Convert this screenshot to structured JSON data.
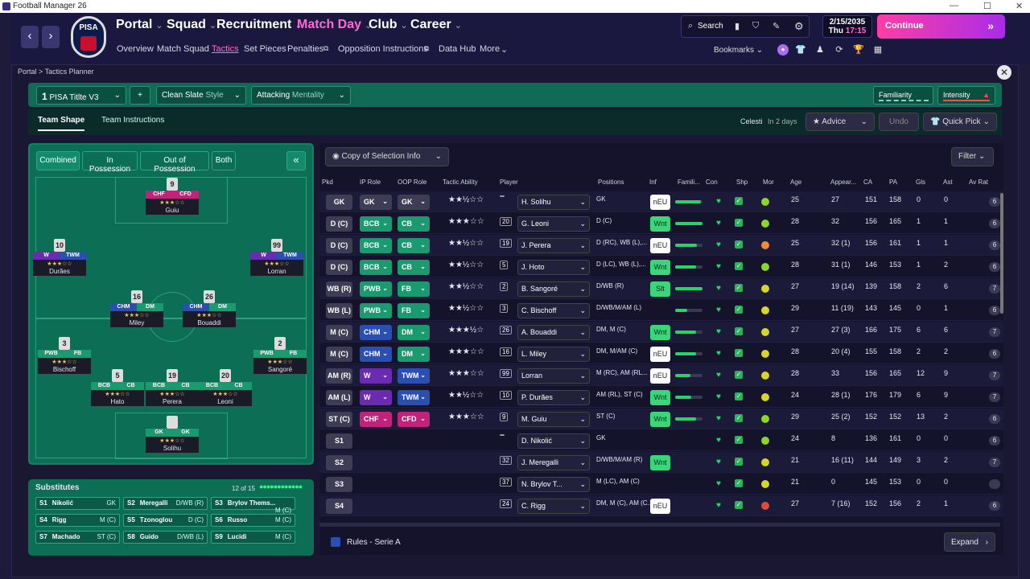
{
  "window": {
    "title": "Football Manager 26",
    "minimize": "—",
    "maximize": "☐",
    "close": "✕"
  },
  "club": {
    "badge_text": "PISA"
  },
  "nav": {
    "main": [
      "Portal",
      "Squad",
      "Recruitment",
      "Match Day",
      "Club",
      "Career"
    ],
    "sub": [
      "Overview",
      "Match Squad",
      "Tactics",
      "Set Pieces",
      "Penalties",
      "Opposition Instructions",
      "Data Hub",
      "More"
    ],
    "active_sub": "Tactics"
  },
  "tools": {
    "search": "Search"
  },
  "date": {
    "line1": "2/15/2035",
    "day": "Thu",
    "time": "17:15"
  },
  "continue_label": "Continue",
  "bookmarks_label": "Bookmarks",
  "breadcrumb": {
    "root": "Portal",
    "current": "Tactics Planner"
  },
  "tactic": {
    "slot": "1",
    "name": "PISA Titlte V3",
    "add": "+",
    "style_value": "Clean Slate",
    "style_label": "Style",
    "mentality_value": "Attacking",
    "mentality_label": "Mentality",
    "familiarity": "Familiarity",
    "intensity": "Intensity"
  },
  "tabs": {
    "shape": "Team Shape",
    "instructions": "Team Instructions"
  },
  "opponent": {
    "name": "Celesti",
    "when": "In 2 days"
  },
  "buttons": {
    "advice": "Advice",
    "undo": "Undo",
    "quick_pick": "Quick Pick",
    "copy_info": "Copy of Selection Info",
    "filter": "Filter",
    "expand": "Expand"
  },
  "shape_toggles": [
    "Combined",
    "In Possession",
    "Out of Possession",
    "Both"
  ],
  "collapse": "«",
  "pitch_players": [
    {
      "num": "9",
      "r1": "CHF",
      "r2": "CFD",
      "name": "Guiu",
      "c1": "#c2237a",
      "c2": "#c2237a"
    },
    {
      "num": "10",
      "r1": "W",
      "r2": "TWM",
      "name": "Durães",
      "c1": "#6a2bb0",
      "c2": "#2a4fb0"
    },
    {
      "num": "99",
      "r1": "W",
      "r2": "TWM",
      "name": "Lorran",
      "c1": "#6a2bb0",
      "c2": "#2a4fb0"
    },
    {
      "num": "16",
      "r1": "CHM",
      "r2": "DM",
      "name": "Miley",
      "c1": "#2a4fb0",
      "c2": "#1a9a6e"
    },
    {
      "num": "26",
      "r1": "CHM",
      "r2": "DM",
      "name": "Bouaddi",
      "c1": "#2a4fb0",
      "c2": "#1a9a6e"
    },
    {
      "num": "3",
      "r1": "PWB",
      "r2": "FB",
      "name": "Bischoff",
      "c1": "#1a9a6e",
      "c2": "#1a9a6e"
    },
    {
      "num": "2",
      "r1": "PWB",
      "r2": "FB",
      "name": "Sangoré",
      "c1": "#1a9a6e",
      "c2": "#1a9a6e"
    },
    {
      "num": "5",
      "r1": "BCB",
      "r2": "CB",
      "name": "Hato",
      "c1": "#1a9a6e",
      "c2": "#1a9a6e"
    },
    {
      "num": "19",
      "r1": "BCB",
      "r2": "CB",
      "name": "Perera",
      "c1": "#1a9a6e",
      "c2": "#1a9a6e"
    },
    {
      "num": "20",
      "r1": "BCB",
      "r2": "CB",
      "name": "Leoni",
      "c1": "#1a9a6e",
      "c2": "#1a9a6e"
    },
    {
      "num": "",
      "r1": "GK",
      "r2": "GK",
      "name": "Solihu",
      "c1": "#1a9a6e",
      "c2": "#1a9a6e"
    }
  ],
  "subs": {
    "title": "Substitutes",
    "count": "12 of 15",
    "list": [
      {
        "s": "S1",
        "n": "Nikolić",
        "p": "GK"
      },
      {
        "s": "S2",
        "n": "Meregalli",
        "p": "D/WB (R)"
      },
      {
        "s": "S3",
        "n": "Brylov Thems...",
        "p": "M (C)"
      },
      {
        "s": "S4",
        "n": "Rigg",
        "p": "M (C)"
      },
      {
        "s": "S5",
        "n": "Tzonoglou",
        "p": "D (C)"
      },
      {
        "s": "S6",
        "n": "Russo",
        "p": "M (C)"
      },
      {
        "s": "S7",
        "n": "Machado",
        "p": "ST (C)"
      },
      {
        "s": "S8",
        "n": "Guido",
        "p": "D/WB (L)"
      },
      {
        "s": "S9",
        "n": "Lucidi",
        "p": "M (C)"
      }
    ]
  },
  "columns": [
    "Pkd",
    "IP Role",
    "OOP Role",
    "Tactic Ability",
    "Player",
    "Positions",
    "Inf",
    "Famili...",
    "Con",
    "Shp",
    "Mor",
    "Age",
    "Appear...",
    "CA",
    "PA",
    "Gls",
    "Ast",
    "Av Rat"
  ],
  "rows": [
    {
      "pkd": "GK",
      "ip": "GK",
      "oop": "GK",
      "ipc": "#3e3d55",
      "oopc": "#3e3d55",
      "stars": "★★½☆☆",
      "num": "",
      "player": "H. Solihu",
      "pos": "GK",
      "inf": "nEU",
      "fam": 0.95,
      "mor": "#8bd62a",
      "age": "25",
      "app": "27",
      "ca": "151",
      "pa": "158",
      "gls": "0",
      "ast": "0",
      "rat": "6"
    },
    {
      "pkd": "D (C)",
      "ip": "BCB",
      "oop": "CB",
      "ipc": "#1a9a6e",
      "oopc": "#1a9a6e",
      "stars": "★★★☆☆",
      "num": "20",
      "player": "G. Leoni",
      "pos": "D (C)",
      "inf": "Wnt",
      "fam": 1.0,
      "mor": "#8bd62a",
      "age": "28",
      "app": "32",
      "ca": "156",
      "pa": "165",
      "gls": "1",
      "ast": "1",
      "rat": "6"
    },
    {
      "pkd": "D (C)",
      "ip": "BCB",
      "oop": "CB",
      "ipc": "#1a9a6e",
      "oopc": "#1a9a6e",
      "stars": "★★½☆☆",
      "num": "19",
      "player": "J. Perera",
      "pos": "D (RC), WB (L),...",
      "inf": "nEU",
      "fam": 0.8,
      "mor": "#f08a3a",
      "age": "25",
      "app": "32 (1)",
      "ca": "156",
      "pa": "161",
      "gls": "1",
      "ast": "1",
      "rat": "6"
    },
    {
      "pkd": "D (C)",
      "ip": "BCB",
      "oop": "CB",
      "ipc": "#1a9a6e",
      "oopc": "#1a9a6e",
      "stars": "★★½☆☆",
      "num": "5",
      "player": "J. Hoto",
      "pos": "D (LC), WB (L),...",
      "inf": "Wnt",
      "fam": 0.75,
      "mor": "#8bd62a",
      "age": "28",
      "app": "31 (1)",
      "ca": "146",
      "pa": "153",
      "gls": "1",
      "ast": "2",
      "rat": "6"
    },
    {
      "pkd": "WB (R)",
      "ip": "PWB",
      "oop": "FB",
      "ipc": "#1a9a6e",
      "oopc": "#1a9a6e",
      "stars": "★★½☆☆",
      "num": "2",
      "player": "B. Sangoré",
      "pos": "D/WB (R)",
      "inf": "Slt",
      "fam": 1.0,
      "mor": "#d6d62a",
      "age": "27",
      "app": "19 (14)",
      "ca": "139",
      "pa": "158",
      "gls": "2",
      "ast": "6",
      "rat": "7"
    },
    {
      "pkd": "WB (L)",
      "ip": "PWB",
      "oop": "FB",
      "ipc": "#1a9a6e",
      "oopc": "#1a9a6e",
      "stars": "★★½☆☆",
      "num": "3",
      "player": "C. Bischoff",
      "pos": "D/WB/M/AM (L)",
      "inf": "",
      "fam": 0.45,
      "mor": "#d6d62a",
      "age": "29",
      "app": "11 (19)",
      "ca": "143",
      "pa": "145",
      "gls": "0",
      "ast": "1",
      "rat": "6"
    },
    {
      "pkd": "M (C)",
      "ip": "CHM",
      "oop": "DM",
      "ipc": "#2a4fb0",
      "oopc": "#1a9a6e",
      "stars": "★★★½☆",
      "num": "26",
      "player": "A. Bouaddi",
      "pos": "DM, M (C)",
      "inf": "Wnt",
      "fam": 0.75,
      "mor": "#d6d62a",
      "age": "27",
      "app": "27 (3)",
      "ca": "166",
      "pa": "175",
      "gls": "6",
      "ast": "6",
      "rat": "7"
    },
    {
      "pkd": "M (C)",
      "ip": "CHM",
      "oop": "DM",
      "ipc": "#2a4fb0",
      "oopc": "#1a9a6e",
      "stars": "★★★☆☆",
      "num": "16",
      "player": "L. Miley",
      "pos": "DM, M/AM (C)",
      "inf": "nEU",
      "fam": 0.75,
      "mor": "#d6d62a",
      "age": "28",
      "app": "20 (4)",
      "ca": "155",
      "pa": "158",
      "gls": "2",
      "ast": "2",
      "rat": "6"
    },
    {
      "pkd": "AM (R)",
      "ip": "W",
      "oop": "TWM",
      "ipc": "#6a2bb0",
      "oopc": "#2a4fb0",
      "stars": "★★★☆☆",
      "num": "99",
      "player": "Lorran",
      "pos": "M (RC), AM (RL...",
      "inf": "nEU",
      "fam": 0.55,
      "mor": "#d6d62a",
      "age": "28",
      "app": "33",
      "ca": "156",
      "pa": "165",
      "gls": "12",
      "ast": "9",
      "rat": "7"
    },
    {
      "pkd": "AM (L)",
      "ip": "W",
      "oop": "TWM",
      "ipc": "#6a2bb0",
      "oopc": "#2a4fb0",
      "stars": "★★½☆☆",
      "num": "10",
      "player": "P. Durães",
      "pos": "AM (RL), ST (C)",
      "inf": "Wnt",
      "fam": 0.6,
      "mor": "#d6d62a",
      "age": "24",
      "app": "28 (1)",
      "ca": "176",
      "pa": "179",
      "gls": "6",
      "ast": "9",
      "rat": "7"
    },
    {
      "pkd": "ST (C)",
      "ip": "CHF",
      "oop": "CFD",
      "ipc": "#c2237a",
      "oopc": "#c2237a",
      "stars": "★★★☆☆",
      "num": "9",
      "player": "M. Guiu",
      "pos": "ST (C)",
      "inf": "Wnt",
      "fam": 0.75,
      "mor": "#8bd62a",
      "age": "29",
      "app": "25 (2)",
      "ca": "152",
      "pa": "152",
      "gls": "13",
      "ast": "2",
      "rat": "6"
    },
    {
      "pkd": "S1",
      "ip": "",
      "oop": "",
      "ipc": "",
      "oopc": "",
      "stars": "",
      "num": "",
      "player": "D. Nikolić",
      "pos": "GK",
      "inf": "",
      "fam": 0,
      "mor": "#8bd62a",
      "age": "24",
      "app": "8",
      "ca": "136",
      "pa": "161",
      "gls": "0",
      "ast": "0",
      "rat": "6"
    },
    {
      "pkd": "S2",
      "ip": "",
      "oop": "",
      "ipc": "",
      "oopc": "",
      "stars": "",
      "num": "32",
      "player": "J. Meregalli",
      "pos": "D/WB/M/AM (R)",
      "inf": "Wnt",
      "fam": 0,
      "mor": "#d6d62a",
      "age": "21",
      "app": "16 (11)",
      "ca": "144",
      "pa": "149",
      "gls": "3",
      "ast": "2",
      "rat": "7"
    },
    {
      "pkd": "S3",
      "ip": "",
      "oop": "",
      "ipc": "",
      "oopc": "",
      "stars": "",
      "num": "37",
      "player": "N. Brylov T...",
      "pos": "M (LC), AM (C)",
      "inf": "",
      "fam": 0,
      "mor": "#d6d62a",
      "age": "21",
      "app": "0",
      "ca": "145",
      "pa": "153",
      "gls": "0",
      "ast": "0",
      "rat": ""
    },
    {
      "pkd": "S4",
      "ip": "",
      "oop": "",
      "ipc": "",
      "oopc": "",
      "stars": "",
      "num": "24",
      "player": "C. Rigg",
      "pos": "DM, M (C), AM (C...",
      "inf": "nEU",
      "fam": 0,
      "mor": "#e04a3a",
      "age": "27",
      "app": "7 (16)",
      "ca": "152",
      "pa": "156",
      "gls": "2",
      "ast": "1",
      "rat": "6"
    }
  ],
  "footer": {
    "rules": "Rules - Serie A"
  }
}
